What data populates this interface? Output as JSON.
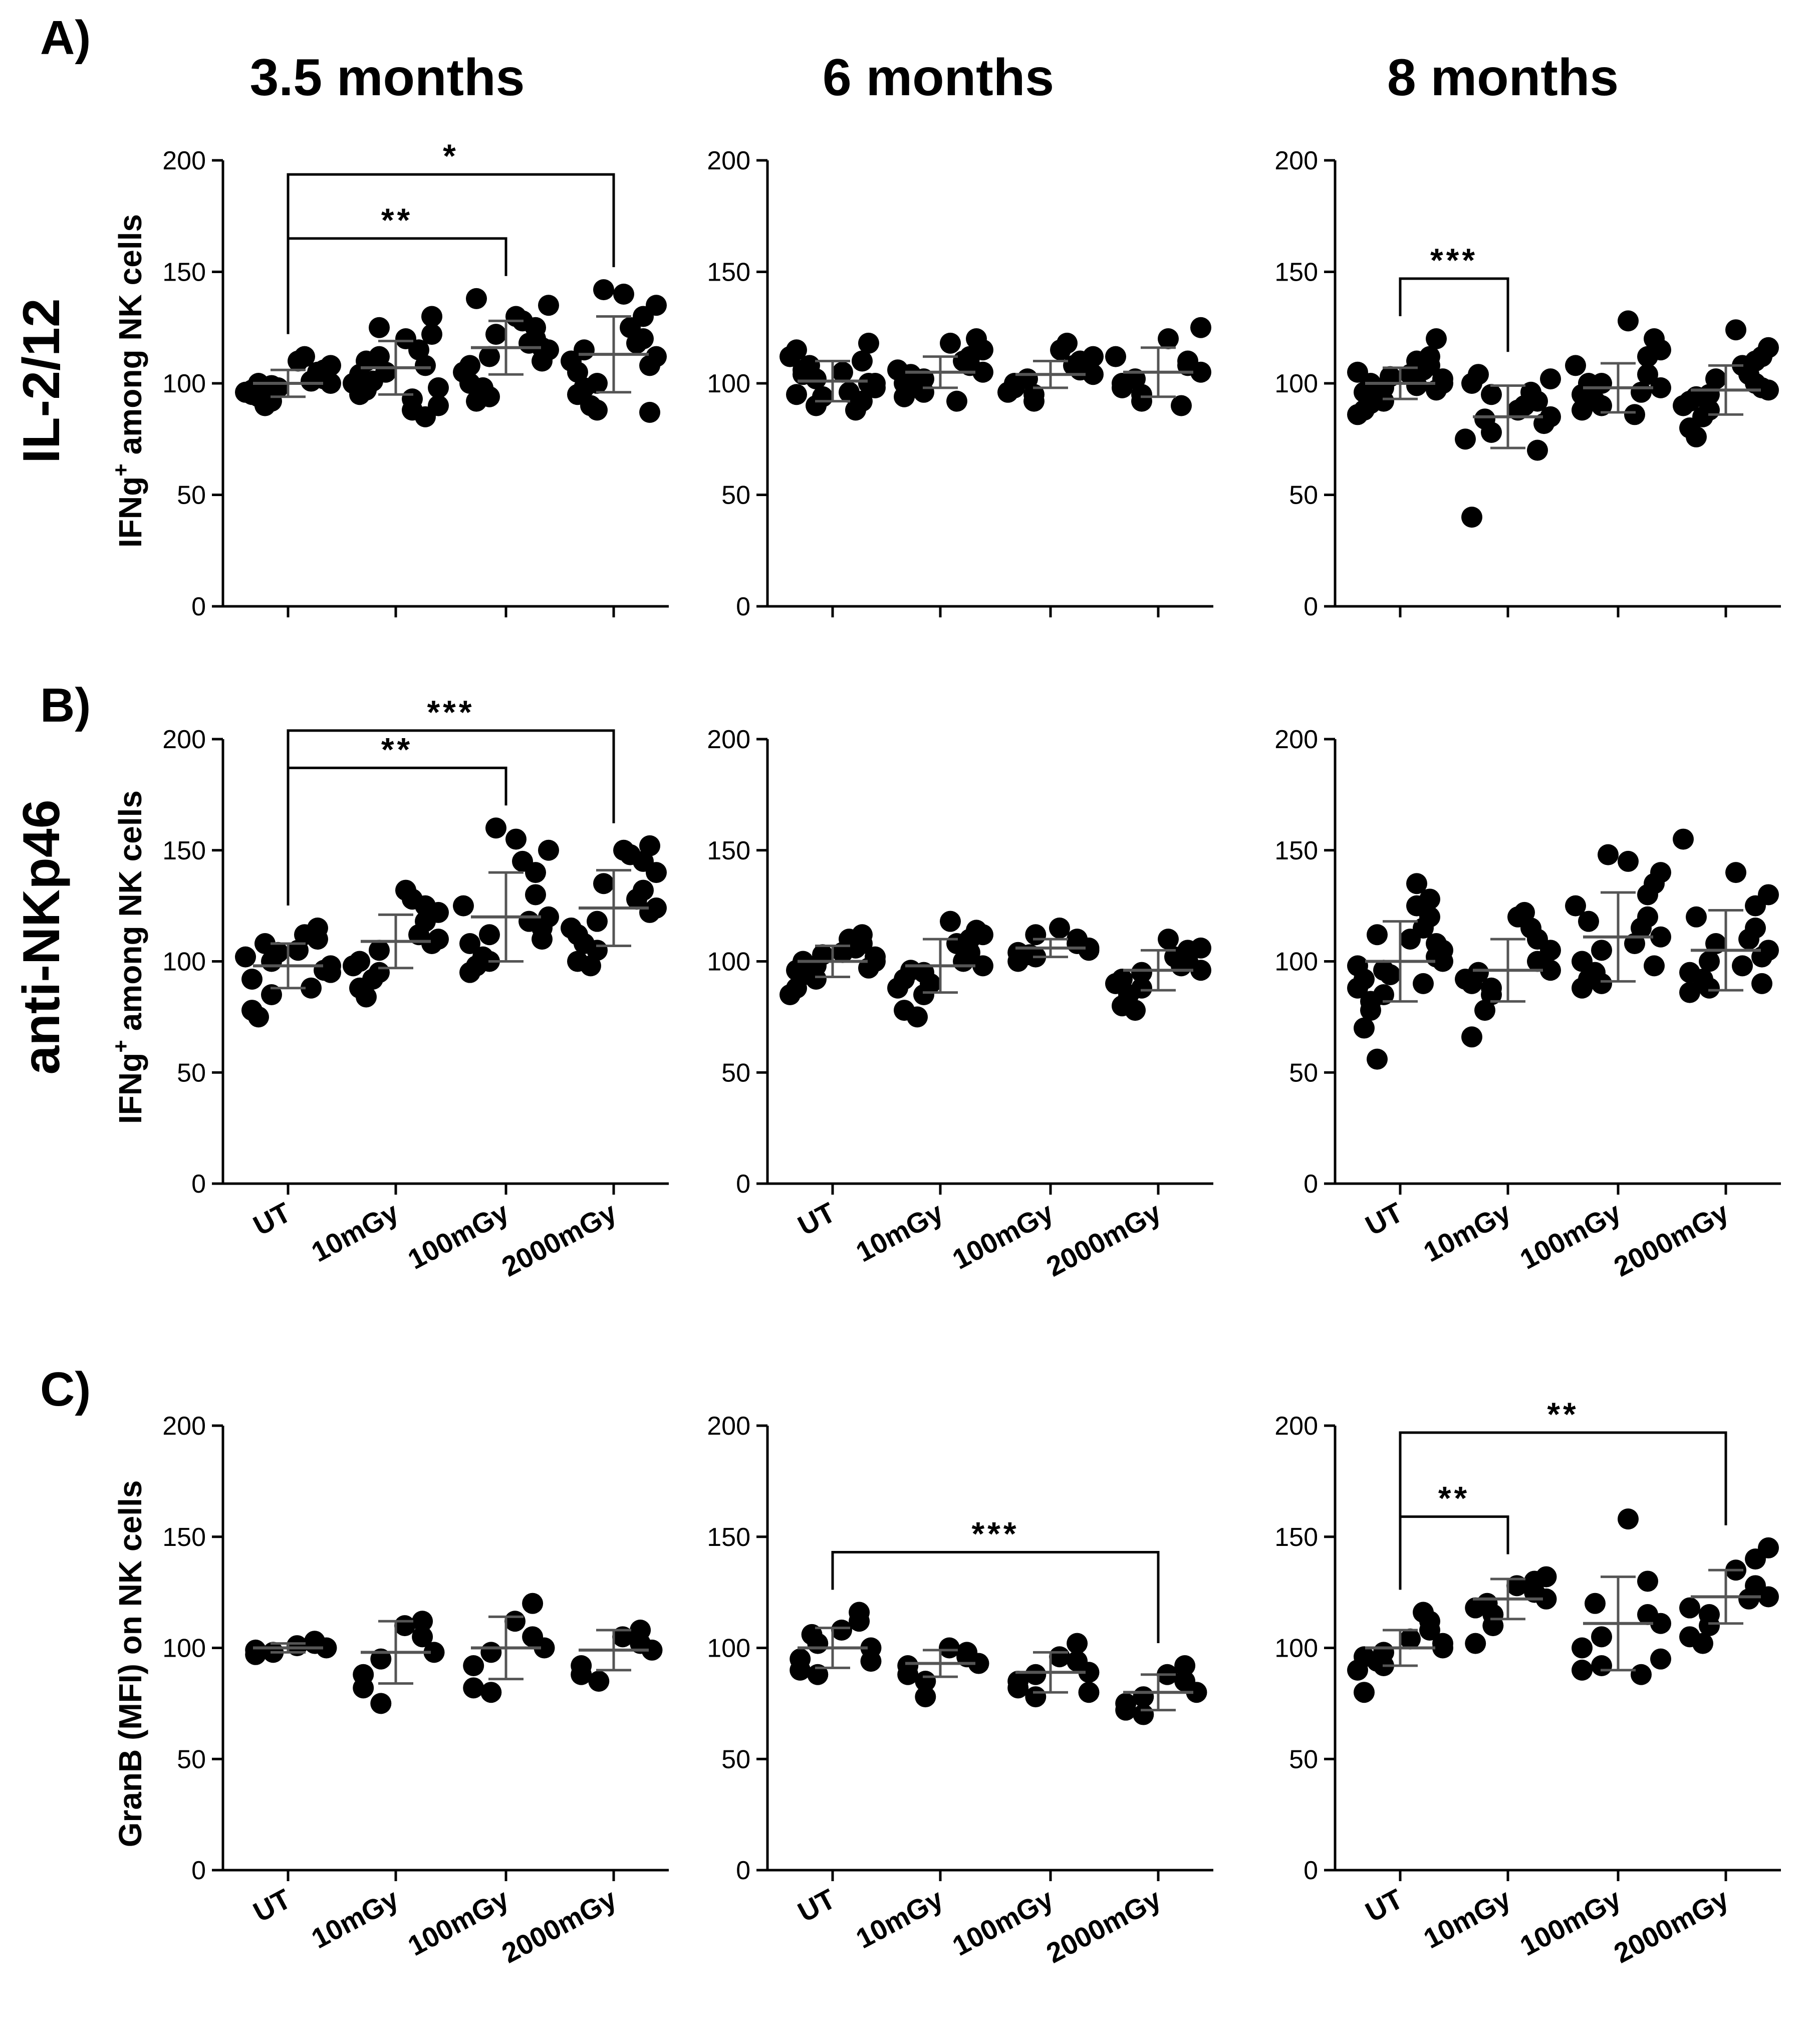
{
  "columns": [
    "3.5 months",
    "6 months",
    "8 months"
  ],
  "panels": [
    {
      "letter": "A)",
      "row_title": "IL-2/12",
      "ylabel_main": "IFNg",
      "ylabel_sup": "+",
      "ylabel_rest": " among NK cells"
    },
    {
      "letter": "B)",
      "row_title": "anti-NKp46",
      "ylabel_main": "IFNg",
      "ylabel_sup": "+",
      "ylabel_rest": " among NK cells"
    },
    {
      "letter": "C)",
      "row_title": "",
      "ylabel_main": "GranB (MFI) on NK cells",
      "ylabel_sup": "",
      "ylabel_rest": ""
    }
  ],
  "colors": {
    "points": "#000000",
    "axis": "#000000"
  },
  "chart_data": [
    {
      "type": "scatter",
      "id": "A-3.5",
      "panel": "A",
      "timepoint": "3.5 months",
      "categories": [
        "UT",
        "10mGy",
        "100mGy",
        "2000mGy"
      ],
      "show_xticklabels": false,
      "ylim": [
        0,
        200
      ],
      "yticks": [
        0,
        50,
        100,
        150,
        200
      ],
      "means": [
        100,
        107,
        116,
        113
      ],
      "sd": [
        6,
        12,
        12,
        17
      ],
      "points": [
        [
          100,
          92,
          105,
          97,
          110,
          95,
          103,
          99,
          108,
          90,
          101,
          96,
          112,
          94,
          102,
          98,
          106,
          100
        ],
        [
          98,
          112,
          85,
          104,
          120,
          95,
          108,
          125,
          90,
          101,
          115,
          100,
          93,
          110,
          122,
          105,
          130,
          97,
          88
        ],
        [
          115,
          94,
          125,
          108,
          130,
          100,
          120,
          112,
          135,
          98,
          118,
          105,
          128,
          92,
          110,
          122,
          116,
          138
        ],
        [
          112,
          88,
          130,
          105,
          140,
          95,
          120,
          100,
          135,
          90,
          118,
          110,
          125,
          98,
          108,
          142,
          87,
          115
        ]
      ],
      "comparisons": [
        {
          "from": "UT",
          "to": "100mGy",
          "label": "**"
        },
        {
          "from": "UT",
          "to": "2000mGy",
          "label": "*"
        }
      ]
    },
    {
      "type": "scatter",
      "id": "A-6",
      "panel": "A",
      "timepoint": "6 months",
      "categories": [
        "UT",
        "10mGy",
        "100mGy",
        "2000mGy"
      ],
      "show_xticklabels": false,
      "ylim": [
        0,
        200
      ],
      "yticks": [
        0,
        50,
        100,
        150,
        200
      ],
      "means": [
        101,
        105,
        104,
        105
      ],
      "sd": [
        9,
        7,
        6,
        11
      ],
      "points": [
        [
          100,
          90,
          110,
          95,
          105,
          115,
          92,
          102,
          98,
          108,
          88,
          112,
          96,
          104,
          118,
          94,
          100,
          106
        ],
        [
          105,
          96,
          112,
          100,
          118,
          94,
          108,
          102,
          115,
          98,
          110,
          106,
          92,
          104,
          120
        ],
        [
          104,
          95,
          110,
          100,
          115,
          98,
          106,
          92,
          112,
          102,
          108,
          96,
          118
        ],
        [
          105,
          92,
          110,
          98,
          120,
          100,
          108,
          95,
          125,
          102,
          90,
          112
        ]
      ],
      "comparisons": []
    },
    {
      "type": "scatter",
      "id": "A-8",
      "panel": "A",
      "timepoint": "8 months",
      "categories": [
        "UT",
        "10mGy",
        "100mGy",
        "2000mGy"
      ],
      "show_xticklabels": false,
      "ylim": [
        0,
        200
      ],
      "yticks": [
        0,
        50,
        100,
        150,
        200
      ],
      "means": [
        100,
        85,
        98,
        97
      ],
      "sd": [
        7,
        14,
        11,
        11
      ],
      "points": [
        [
          100,
          92,
          108,
          96,
          104,
          88,
          112,
          98,
          102,
          94,
          106,
          86,
          110,
          100,
          97,
          103,
          120,
          91,
          99,
          105
        ],
        [
          85,
          95,
          70,
          100,
          88,
          40,
          92,
          78,
          102,
          84,
          96,
          75,
          90,
          104,
          82
        ],
        [
          98,
          90,
          112,
          95,
          128,
          88,
          104,
          100,
          115,
          92,
          96,
          108,
          86,
          100,
          120
        ],
        [
          97,
          88,
          110,
          92,
          124,
          80,
          100,
          95,
          116,
          85,
          104,
          90,
          108,
          76,
          98,
          102,
          112,
          94
        ]
      ],
      "comparisons": [
        {
          "from": "UT",
          "to": "10mGy",
          "label": "***"
        }
      ]
    },
    {
      "type": "scatter",
      "id": "B-3.5",
      "panel": "B",
      "timepoint": "3.5 months",
      "categories": [
        "UT",
        "10mGy",
        "100mGy",
        "2000mGy"
      ],
      "show_xticklabels": true,
      "ylim": [
        0,
        200
      ],
      "yticks": [
        0,
        50,
        100,
        150,
        200
      ],
      "means": [
        98,
        109,
        120,
        124
      ],
      "sd": [
        10,
        12,
        20,
        17
      ],
      "points": [
        [
          98,
          85,
          110,
          92,
          105,
          78,
          115,
          100,
          95,
          108,
          88,
          102,
          112,
          75,
          96,
          104
        ],
        [
          110,
          95,
          125,
          100,
          132,
          88,
          118,
          105,
          122,
          92,
          112,
          98,
          128,
          84,
          108
        ],
        [
          120,
          100,
          140,
          108,
          155,
          95,
          130,
          112,
          150,
          102,
          118,
          125,
          145,
          98,
          115,
          160,
          110
        ],
        [
          124,
          105,
          145,
          112,
          150,
          100,
          132,
          118,
          140,
          98,
          128,
          115,
          148,
          108,
          122,
          135,
          152
        ]
      ],
      "comparisons": [
        {
          "from": "UT",
          "to": "100mGy",
          "label": "**"
        },
        {
          "from": "UT",
          "to": "2000mGy",
          "label": "***"
        }
      ]
    },
    {
      "type": "scatter",
      "id": "B-6",
      "panel": "B",
      "timepoint": "6 months",
      "categories": [
        "UT",
        "10mGy",
        "100mGy",
        "2000mGy"
      ],
      "show_xticklabels": true,
      "ylim": [
        0,
        200
      ],
      "yticks": [
        0,
        50,
        100,
        150,
        200
      ],
      "means": [
        100,
        98,
        106,
        96
      ],
      "sd": [
        7,
        12,
        4,
        9
      ],
      "points": [
        [
          100,
          92,
          108,
          96,
          104,
          88,
          112,
          98,
          102,
          94,
          106,
          85,
          110,
          100,
          97,
          103
        ],
        [
          98,
          85,
          110,
          92,
          118,
          78,
          104,
          95,
          112,
          75,
          100,
          88,
          108,
          96,
          114,
          90
        ],
        [
          106,
          102,
          110,
          104,
          115,
          100,
          108,
          112,
          105,
          103
        ],
        [
          96,
          88,
          105,
          92,
          110,
          80,
          100,
          95,
          106,
          78,
          98,
          90,
          102,
          85
        ]
      ],
      "comparisons": []
    },
    {
      "type": "scatter",
      "id": "B-8",
      "panel": "B",
      "timepoint": "8 months",
      "categories": [
        "UT",
        "10mGy",
        "100mGy",
        "2000mGy"
      ],
      "show_xticklabels": true,
      "ylim": [
        0,
        200
      ],
      "yticks": [
        0,
        50,
        100,
        150,
        200
      ],
      "means": [
        100,
        96,
        111,
        105
      ],
      "sd": [
        18,
        14,
        20,
        18
      ],
      "points": [
        [
          100,
          85,
          120,
          92,
          110,
          70,
          128,
          96,
          105,
          56,
          115,
          88,
          135,
          78,
          102,
          94,
          108,
          82,
          125,
          98,
          90,
          112
        ],
        [
          96,
          85,
          110,
          90,
          120,
          66,
          100,
          88,
          105,
          78,
          115,
          92,
          122,
          95
        ],
        [
          111,
          90,
          130,
          100,
          145,
          88,
          120,
          105,
          140,
          95,
          115,
          125,
          108,
          92,
          135,
          148,
          98,
          118
        ],
        [
          105,
          88,
          125,
          95,
          140,
          86,
          115,
          100,
          130,
          92,
          110,
          155,
          98,
          120,
          90,
          108,
          102
        ]
      ],
      "comparisons": []
    },
    {
      "type": "scatter",
      "id": "C-3.5",
      "panel": "C",
      "timepoint": "3.5 months",
      "categories": [
        "UT",
        "10mGy",
        "100mGy",
        "2000mGy"
      ],
      "show_xticklabels": true,
      "ylim": [
        0,
        200
      ],
      "yticks": [
        0,
        50,
        100,
        150,
        200
      ],
      "means": [
        100,
        98,
        100,
        99
      ],
      "sd": [
        2,
        14,
        14,
        9
      ],
      "points": [
        [
          100,
          98,
          102,
          99,
          101,
          97,
          103
        ],
        [
          98,
          75,
          112,
          88,
          110,
          82,
          105,
          95
        ],
        [
          100,
          80,
          120,
          92,
          112,
          82,
          105,
          98
        ],
        [
          99,
          85,
          108,
          92,
          105,
          88,
          102
        ]
      ],
      "comparisons": []
    },
    {
      "type": "scatter",
      "id": "C-6",
      "panel": "C",
      "timepoint": "6 months",
      "categories": [
        "UT",
        "10mGy",
        "100mGy",
        "2000mGy"
      ],
      "show_xticklabels": true,
      "ylim": [
        0,
        200
      ],
      "yticks": [
        0,
        50,
        100,
        150,
        200
      ],
      "means": [
        100,
        93,
        89,
        80
      ],
      "sd": [
        9,
        6,
        9,
        8
      ],
      "points": [
        [
          100,
          88,
          112,
          95,
          108,
          90,
          116,
          102,
          94,
          106
        ],
        [
          93,
          78,
          98,
          88,
          100,
          92,
          96,
          85
        ],
        [
          89,
          78,
          102,
          85,
          96,
          82,
          94,
          88,
          80
        ],
        [
          80,
          70,
          92,
          75,
          88,
          72,
          85,
          78
        ]
      ],
      "comparisons": [
        {
          "from": "UT",
          "to": "2000mGy",
          "label": "***"
        }
      ]
    },
    {
      "type": "scatter",
      "id": "C-8",
      "panel": "C",
      "timepoint": "8 months",
      "categories": [
        "UT",
        "10mGy",
        "100mGy",
        "2000mGy"
      ],
      "show_xticklabels": true,
      "ylim": [
        0,
        200
      ],
      "yticks": [
        0,
        50,
        100,
        150,
        200
      ],
      "means": [
        100,
        122,
        111,
        123
      ],
      "sd": [
        8,
        9,
        21,
        12
      ],
      "points": [
        [
          100,
          92,
          108,
          96,
          104,
          80,
          112,
          98,
          102,
          94,
          116,
          90
        ],
        [
          122,
          110,
          130,
          118,
          128,
          102,
          125,
          115,
          132,
          120
        ],
        [
          111,
          92,
          130,
          100,
          158,
          90,
          115,
          105,
          95,
          120,
          88
        ],
        [
          123,
          110,
          140,
          118,
          135,
          105,
          128,
          115,
          145,
          102,
          122
        ]
      ],
      "comparisons": [
        {
          "from": "UT",
          "to": "10mGy",
          "label": "**"
        },
        {
          "from": "UT",
          "to": "2000mGy",
          "label": "**"
        }
      ]
    }
  ]
}
